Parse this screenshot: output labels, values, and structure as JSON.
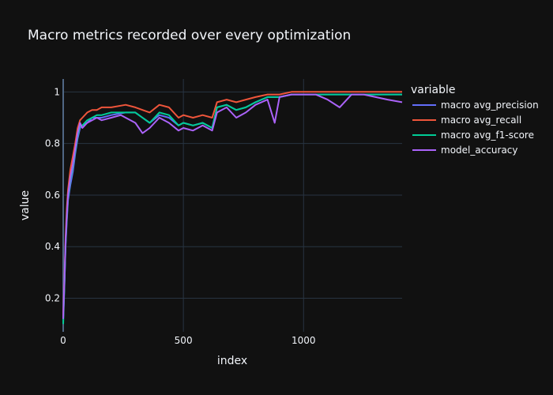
{
  "chart_data": {
    "type": "line",
    "title": "Macro metrics recorded over every optimization",
    "xlabel": "index",
    "ylabel": "value",
    "xlim": [
      0,
      1410
    ],
    "ylim": [
      0.07,
      1.05
    ],
    "x_ticks": [
      0,
      500,
      1000
    ],
    "y_ticks": [
      0.2,
      0.4,
      0.6,
      0.8,
      1
    ],
    "grid": true,
    "legend_title": "variable",
    "legend_position": "right",
    "series": [
      {
        "name": "macro avg_precision",
        "color": "#636efa",
        "x": [
          0,
          5,
          10,
          15,
          20,
          30,
          40,
          50,
          60,
          70,
          80,
          100,
          120,
          140,
          160,
          200,
          260,
          300,
          330,
          360,
          400,
          440,
          480,
          500,
          540,
          580,
          620,
          640,
          680,
          720,
          760,
          800,
          850,
          900,
          950,
          1000,
          1100,
          1200,
          1300,
          1410
        ],
        "y": [
          0.12,
          0.25,
          0.4,
          0.5,
          0.58,
          0.64,
          0.69,
          0.76,
          0.82,
          0.86,
          0.87,
          0.88,
          0.9,
          0.9,
          0.9,
          0.91,
          0.92,
          0.92,
          0.9,
          0.88,
          0.91,
          0.9,
          0.87,
          0.88,
          0.87,
          0.88,
          0.86,
          0.94,
          0.95,
          0.93,
          0.94,
          0.96,
          0.98,
          0.98,
          0.99,
          0.99,
          0.99,
          0.99,
          0.99,
          0.99
        ]
      },
      {
        "name": "macro avg_recall",
        "color": "#ef553b",
        "x": [
          0,
          5,
          10,
          15,
          20,
          30,
          40,
          50,
          60,
          70,
          80,
          100,
          120,
          140,
          160,
          200,
          260,
          300,
          330,
          360,
          400,
          440,
          480,
          500,
          540,
          580,
          620,
          640,
          680,
          720,
          760,
          800,
          850,
          900,
          950,
          1000,
          1100,
          1200,
          1300,
          1410
        ],
        "y": [
          0.13,
          0.27,
          0.44,
          0.55,
          0.62,
          0.7,
          0.75,
          0.8,
          0.86,
          0.89,
          0.9,
          0.92,
          0.93,
          0.93,
          0.94,
          0.94,
          0.95,
          0.94,
          0.93,
          0.92,
          0.95,
          0.94,
          0.9,
          0.91,
          0.9,
          0.91,
          0.9,
          0.96,
          0.97,
          0.96,
          0.97,
          0.98,
          0.99,
          0.99,
          1,
          1,
          1,
          1,
          1,
          1
        ]
      },
      {
        "name": "macro avg_f1-score",
        "color": "#00cc96",
        "x": [
          0,
          5,
          10,
          15,
          20,
          30,
          40,
          50,
          60,
          70,
          80,
          100,
          120,
          140,
          160,
          200,
          260,
          300,
          330,
          360,
          400,
          440,
          480,
          500,
          540,
          580,
          620,
          640,
          680,
          720,
          760,
          800,
          850,
          900,
          950,
          1000,
          1100,
          1200,
          1300,
          1410
        ],
        "y": [
          0.1,
          0.24,
          0.41,
          0.51,
          0.59,
          0.66,
          0.71,
          0.77,
          0.83,
          0.87,
          0.87,
          0.89,
          0.9,
          0.91,
          0.91,
          0.92,
          0.92,
          0.92,
          0.9,
          0.88,
          0.92,
          0.91,
          0.87,
          0.88,
          0.87,
          0.88,
          0.86,
          0.94,
          0.95,
          0.93,
          0.94,
          0.96,
          0.98,
          0.98,
          0.99,
          0.99,
          0.99,
          0.99,
          0.99,
          0.99
        ]
      },
      {
        "name": "model_accuracy",
        "color": "#ab63fa",
        "x": [
          0,
          5,
          10,
          15,
          20,
          30,
          40,
          50,
          60,
          70,
          80,
          100,
          120,
          140,
          160,
          200,
          240,
          260,
          300,
          330,
          360,
          400,
          440,
          480,
          500,
          540,
          580,
          620,
          640,
          680,
          720,
          760,
          800,
          850,
          880,
          900,
          950,
          1000,
          1050,
          1100,
          1150,
          1200,
          1250,
          1300,
          1350,
          1410
        ],
        "y": [
          0.12,
          0.26,
          0.42,
          0.52,
          0.6,
          0.67,
          0.72,
          0.78,
          0.84,
          0.88,
          0.86,
          0.88,
          0.89,
          0.9,
          0.89,
          0.9,
          0.91,
          0.9,
          0.88,
          0.84,
          0.86,
          0.9,
          0.88,
          0.85,
          0.86,
          0.85,
          0.87,
          0.85,
          0.92,
          0.94,
          0.9,
          0.92,
          0.95,
          0.97,
          0.88,
          0.98,
          0.99,
          0.99,
          0.99,
          0.97,
          0.94,
          0.99,
          0.99,
          0.98,
          0.97,
          0.96
        ]
      }
    ]
  }
}
